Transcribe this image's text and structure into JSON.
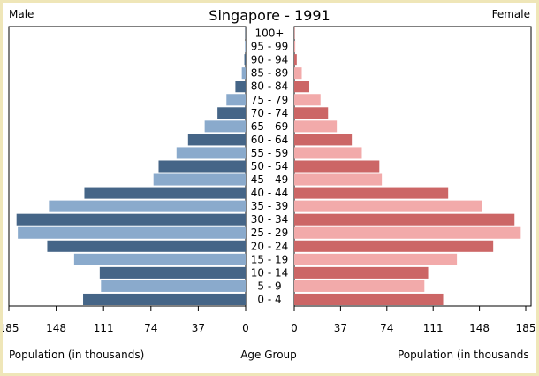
{
  "chart_data": {
    "type": "bar",
    "title": "Singapore - 1991",
    "left_label": "Male",
    "right_label": "Female",
    "center_axis_label": "Age Group",
    "left_axis_label": "Population (in thousands)",
    "right_axis_label": "Population (in thousands",
    "xlim": [
      0,
      185
    ],
    "tick_labels": [
      "185",
      "148",
      "111",
      "74",
      "37",
      "0"
    ],
    "tick_labels_right": [
      "0",
      "37",
      "74",
      "111",
      "148",
      "185"
    ],
    "categories": [
      "0 - 4",
      "5 - 9",
      "10 - 14",
      "15 - 19",
      "20 - 24",
      "25 - 29",
      "30 - 34",
      "35 - 39",
      "40 - 44",
      "45 - 49",
      "50 - 54",
      "55 - 59",
      "60 - 64",
      "65 - 69",
      "70 - 74",
      "75 - 79",
      "80 - 84",
      "85 - 89",
      "90 - 94",
      "95 - 99",
      "100+"
    ],
    "series": [
      {
        "name": "Male",
        "values": [
          127,
          113,
          114,
          134,
          155,
          178,
          179,
          153,
          126,
          72,
          68,
          54,
          45,
          32,
          22,
          15,
          8,
          3,
          1,
          0.5,
          0.2
        ]
      },
      {
        "name": "Female",
        "values": [
          119,
          104,
          107,
          130,
          159,
          181,
          176,
          150,
          123,
          70,
          68,
          54,
          46,
          34,
          27,
          21,
          12,
          6,
          2,
          0.8,
          0.3
        ]
      }
    ],
    "colors": {
      "male_dark": "#456587",
      "male_light": "#8aaacc",
      "female_dark": "#cc6666",
      "female_light": "#f2aaaa",
      "background": "#efe6b8"
    }
  }
}
